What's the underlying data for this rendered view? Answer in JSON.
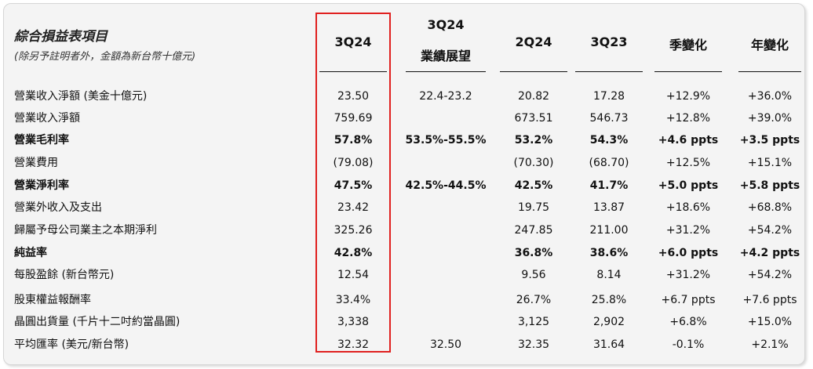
{
  "title": "綜合損益表項目",
  "subtitle": "(除另予註明者外，金額為新台幣十億元)",
  "columns": [
    {
      "line1": "",
      "line2": "3Q24"
    },
    {
      "line1": "3Q24",
      "line2": "業績展望"
    },
    {
      "line1": "",
      "line2": "2Q24"
    },
    {
      "line1": "",
      "line2": "3Q23"
    },
    {
      "line1": "",
      "line2": "季變化"
    },
    {
      "line1": "",
      "line2": "年變化"
    }
  ],
  "rows": [
    {
      "label": "營業收入淨額 (美金十億元)",
      "bold": false,
      "values": [
        "23.50",
        "22.4-23.2",
        "20.82",
        "17.28",
        "+12.9%",
        "+36.0%"
      ]
    },
    {
      "label": "營業收入淨額",
      "bold": false,
      "values": [
        "759.69",
        "",
        "673.51",
        "546.73",
        "+12.8%",
        "+39.0%"
      ]
    },
    {
      "label": "營業毛利率",
      "bold": true,
      "values": [
        "57.8%",
        "53.5%-55.5%",
        "53.2%",
        "54.3%",
        "+4.6 ppts",
        "+3.5 ppts"
      ]
    },
    {
      "label": "營業費用",
      "bold": false,
      "values": [
        "(79.08)",
        "",
        "(70.30)",
        "(68.70)",
        "+12.5%",
        "+15.1%"
      ]
    },
    {
      "label": "營業淨利率",
      "bold": true,
      "values": [
        "47.5%",
        "42.5%-44.5%",
        "42.5%",
        "41.7%",
        "+5.0 ppts",
        "+5.8 ppts"
      ]
    },
    {
      "label": "營業外收入及支出",
      "bold": false,
      "values": [
        "23.42",
        "",
        "19.75",
        "13.87",
        "+18.6%",
        "+68.8%"
      ]
    },
    {
      "label": "歸屬予母公司業主之本期淨利",
      "bold": false,
      "values": [
        "325.26",
        "",
        "247.85",
        "211.00",
        "+31.2%",
        "+54.2%"
      ]
    },
    {
      "label": "純益率",
      "bold": true,
      "values": [
        "42.8%",
        "",
        "36.8%",
        "38.6%",
        "+6.0 ppts",
        "+4.2 ppts"
      ]
    },
    {
      "label": "每股盈餘 (新台幣元)",
      "bold": false,
      "values": [
        "12.54",
        "",
        "9.56",
        "8.14",
        "+31.2%",
        "+54.2%"
      ]
    },
    {
      "label": "股東權益報酬率",
      "bold": false,
      "values": [
        "33.4%",
        "",
        "26.7%",
        "25.8%",
        "+6.7 ppts",
        "+7.6 ppts"
      ]
    },
    {
      "label": "晶圓出貨量 (千片十二吋約當晶圓)",
      "bold": false,
      "values": [
        "3,338",
        "",
        "3,125",
        "2,902",
        "+6.8%",
        "+15.0%"
      ]
    },
    {
      "label": "平均匯率 (美元/新台幣)",
      "bold": false,
      "values": [
        "32.32",
        "32.50",
        "32.35",
        "31.64",
        "-0.1%",
        "+2.1%"
      ]
    }
  ],
  "colors": {
    "highlight_border": "#e0201f",
    "panel_background": "#f4f4f4"
  }
}
